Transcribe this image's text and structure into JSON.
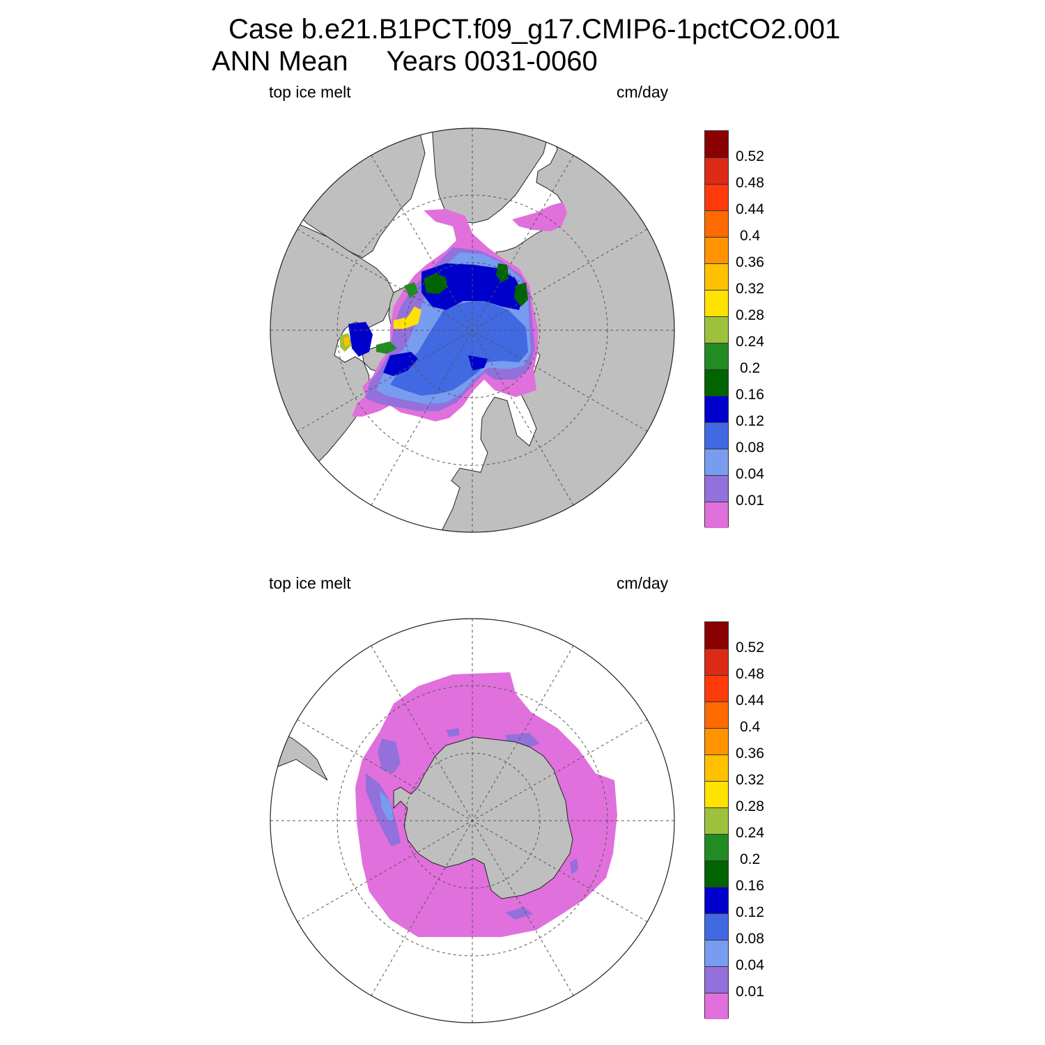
{
  "title_line1": "Case b.e21.B1PCT.f09_g17.CMIP6-1pctCO2.001",
  "title_line2": "ANN Mean     Years 0031-0060",
  "panels": [
    {
      "id": "north",
      "left_label": "top ice melt",
      "right_label": "cm/day"
    },
    {
      "id": "south",
      "left_label": "top ice melt",
      "right_label": "cm/day"
    }
  ],
  "colorbar": {
    "labels": [
      "0.52",
      "0.48",
      "0.44",
      "0.4",
      "0.36",
      "0.32",
      "0.28",
      "0.24",
      "0.2",
      "0.16",
      "0.12",
      "0.08",
      "0.04",
      "0.01"
    ],
    "colors_top_to_bottom": [
      "#8b0000",
      "#dd2a16",
      "#ff3b0b",
      "#ff6a00",
      "#ff9400",
      "#ffc100",
      "#ffe200",
      "#9dc13a",
      "#228b22",
      "#006400",
      "#0000cd",
      "#4169e1",
      "#789cf0",
      "#9370db",
      "#e070dc"
    ]
  },
  "map_colors": {
    "land": "#bfbfbf",
    "ocean": "#ffffff",
    "grid": "#555555"
  }
}
